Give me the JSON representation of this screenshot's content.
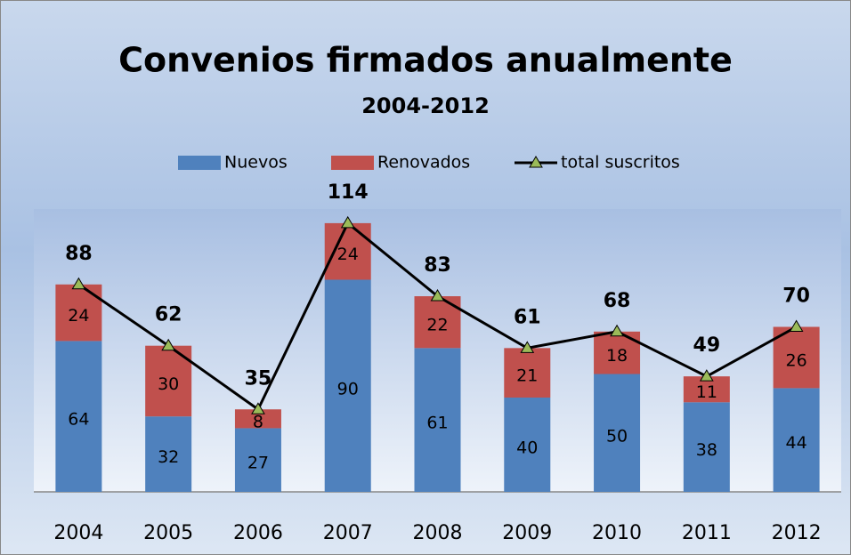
{
  "chart_data": {
    "type": "bar",
    "stacked": true,
    "title": "Convenios firmados anualmente",
    "subtitle": "2004-2012",
    "categories": [
      "2004",
      "2005",
      "2006",
      "2007",
      "2008",
      "2009",
      "2010",
      "2011",
      "2012"
    ],
    "series": [
      {
        "name": "Nuevos",
        "color": "#4f81bd",
        "values": [
          64,
          32,
          27,
          90,
          61,
          40,
          50,
          38,
          44
        ]
      },
      {
        "name": "Renovados",
        "color": "#c0504d",
        "values": [
          24,
          30,
          8,
          24,
          22,
          21,
          18,
          11,
          26
        ]
      },
      {
        "name": "total suscritos",
        "type": "line",
        "color": "#000000",
        "marker_color": "#9bbb59",
        "values": [
          88,
          62,
          35,
          114,
          83,
          61,
          68,
          49,
          70
        ]
      }
    ],
    "ylim": [
      0,
      120
    ]
  }
}
